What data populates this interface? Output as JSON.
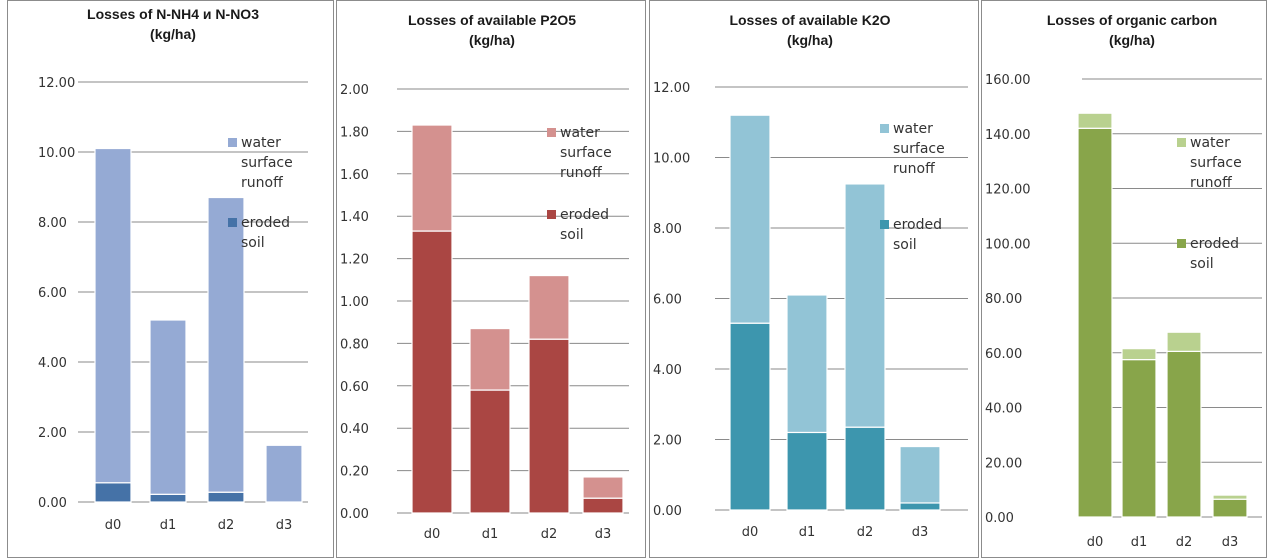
{
  "chart_data": [
    {
      "type": "bar",
      "stacked": true,
      "title": "Losses of N-NH4 и N-NO3",
      "subtitle": "(kg/ha)",
      "categories": [
        "d0",
        "d1",
        "d2",
        "d3"
      ],
      "ylim": [
        0,
        12
      ],
      "ytick_step": 2,
      "ytick_labels": [
        "0.00",
        "2.00",
        "4.00",
        "6.00",
        "8.00",
        "10.00",
        "12.00"
      ],
      "grid": true,
      "legend_position": "right",
      "series": [
        {
          "name": "eroded soil",
          "legend_lines": [
            "eroded",
            "soil"
          ],
          "values": [
            0.55,
            0.22,
            0.28,
            0.0
          ],
          "color": "#4572a7"
        },
        {
          "name": "water surface runoff",
          "legend_lines": [
            "water",
            "surface",
            "runoff"
          ],
          "values": [
            9.55,
            4.98,
            8.42,
            1.62
          ],
          "color": "#95aad4"
        }
      ]
    },
    {
      "type": "bar",
      "stacked": true,
      "title": "Losses of available P2O5",
      "subtitle": "(kg/ha)",
      "categories": [
        "d0",
        "d1",
        "d2",
        "d3"
      ],
      "ylim": [
        0,
        2
      ],
      "ytick_step": 0.2,
      "ytick_labels": [
        "0.00",
        "0.20",
        "0.40",
        "0.60",
        "0.80",
        "1.00",
        "1.20",
        "1.40",
        "1.60",
        "1.80",
        "2.00"
      ],
      "grid": true,
      "legend_position": "right",
      "series": [
        {
          "name": "eroded soil",
          "legend_lines": [
            "eroded",
            "soil"
          ],
          "values": [
            1.33,
            0.58,
            0.82,
            0.07
          ],
          "color": "#aa4643"
        },
        {
          "name": "water surface runoff",
          "legend_lines": [
            "water",
            "surface",
            "runoff"
          ],
          "values": [
            0.5,
            0.29,
            0.3,
            0.1
          ],
          "color": "#d4918f"
        }
      ]
    },
    {
      "type": "bar",
      "stacked": true,
      "title": "Losses of available K2O",
      "subtitle": "(kg/ha)",
      "categories": [
        "d0",
        "d1",
        "d2",
        "d3"
      ],
      "ylim": [
        0,
        12
      ],
      "ytick_step": 2,
      "ytick_labels": [
        "0.00",
        "2.00",
        "4.00",
        "6.00",
        "8.00",
        "10.00",
        "12.00"
      ],
      "grid": true,
      "legend_position": "right",
      "series": [
        {
          "name": "eroded soil",
          "legend_lines": [
            "eroded",
            "soil"
          ],
          "values": [
            5.3,
            2.2,
            2.35,
            0.2
          ],
          "color": "#3d96ae"
        },
        {
          "name": "water surface runoff",
          "legend_lines": [
            "water",
            "surface",
            "runoff"
          ],
          "values": [
            5.9,
            3.9,
            6.9,
            1.6
          ],
          "color": "#92c4d6"
        }
      ]
    },
    {
      "type": "bar",
      "stacked": true,
      "title": "Losses of organic carbon",
      "subtitle": "(kg/ha)",
      "categories": [
        "d0",
        "d1",
        "d2",
        "d3"
      ],
      "ylim": [
        0,
        160
      ],
      "ytick_step": 20,
      "ytick_labels": [
        "0.00",
        "20.00",
        "40.00",
        "60.00",
        "80.00",
        "100.00",
        "120.00",
        "140.00",
        "160.00"
      ],
      "grid": true,
      "legend_position": "right",
      "series": [
        {
          "name": "eroded soil",
          "legend_lines": [
            "eroded",
            "soil"
          ],
          "values": [
            142,
            57.5,
            60.5,
            6.5
          ],
          "color": "#88a54a"
        },
        {
          "name": "water surface runoff",
          "legend_lines": [
            "water",
            "surface",
            "runoff"
          ],
          "values": [
            5.5,
            4,
            7,
            1.5
          ],
          "color": "#b9d18f"
        }
      ]
    }
  ]
}
